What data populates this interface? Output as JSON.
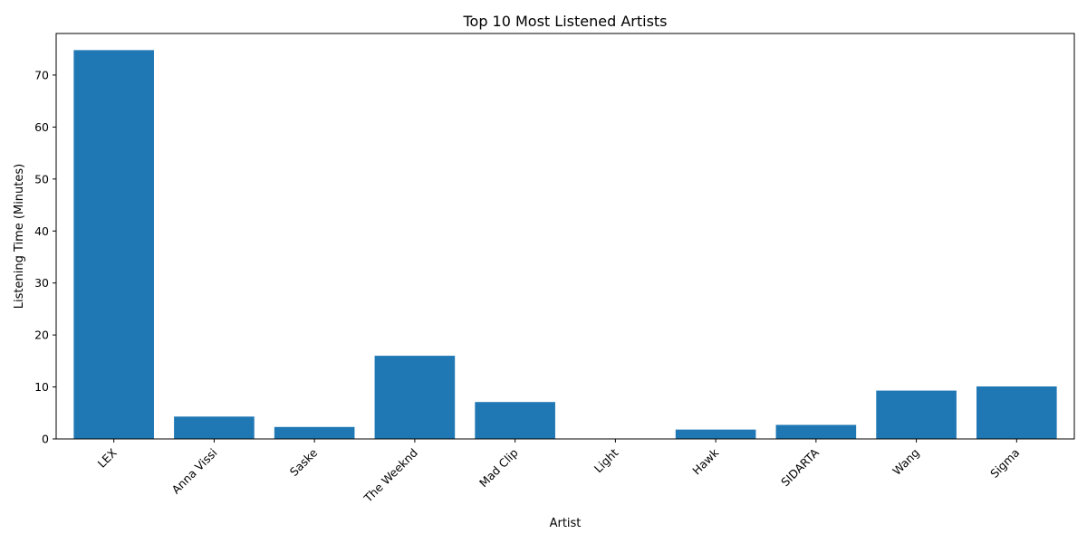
{
  "chart_data": {
    "type": "bar",
    "title": "Top 10 Most Listened Artists",
    "xlabel": "Artist",
    "ylabel": "Listening Time (Minutes)",
    "categories": [
      "LEX",
      "Anna Vissi",
      "Saske",
      "The Weeknd",
      "Mad Clip",
      "Light",
      "Hawk",
      "SIDARTA",
      "Wang",
      "Sigma"
    ],
    "values": [
      74.8,
      4.3,
      2.3,
      16.0,
      7.1,
      0.05,
      1.8,
      2.7,
      9.3,
      10.1
    ],
    "ylim": [
      0,
      78
    ],
    "yticks": [
      0,
      10,
      20,
      30,
      40,
      50,
      60,
      70
    ],
    "bar_color": "#1f77b4",
    "grid": false,
    "legend": "none"
  }
}
